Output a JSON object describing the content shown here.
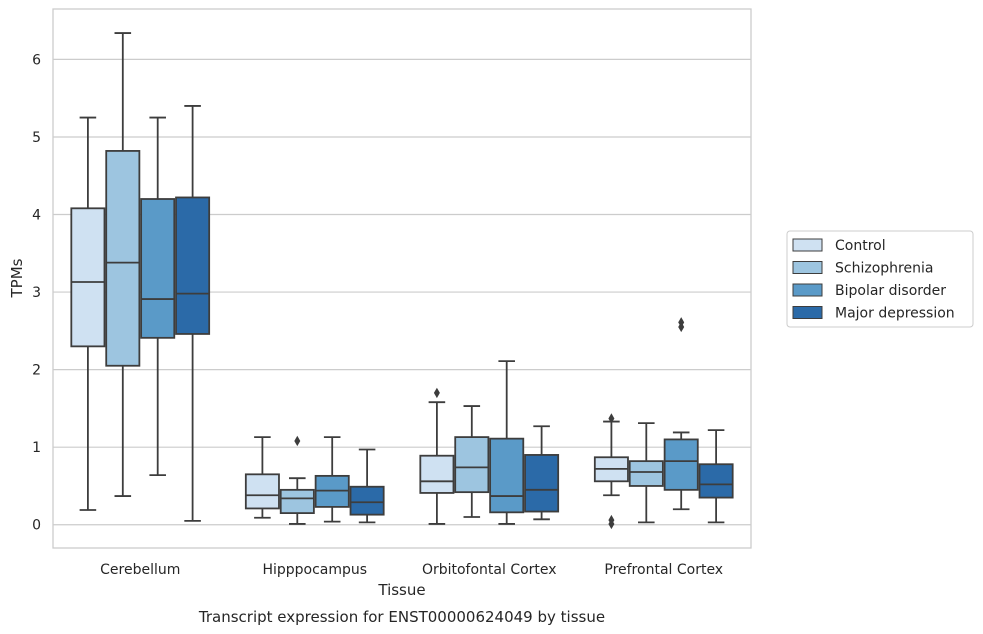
{
  "chart_data": {
    "type": "boxplot",
    "title": "",
    "caption": "Transcript expression for ENST00000624049 by tissue",
    "xlabel": "Tissue",
    "ylabel": "TPMs",
    "ylim": [
      -0.3,
      6.65
    ],
    "yticks": [
      0,
      1,
      2,
      3,
      4,
      5,
      6
    ],
    "grid": "horizontal",
    "legend_position": "right",
    "categories": [
      "Cerebellum",
      "Hipppocampus",
      "Orbitofontal Cortex",
      "Prefrontal Cortex"
    ],
    "series": [
      {
        "name": "Control",
        "color": "#cfe1f2",
        "boxes": [
          {
            "whislo": 0.19,
            "q1": 2.3,
            "med": 3.13,
            "q3": 4.08,
            "whishi": 5.25,
            "fliers": []
          },
          {
            "whislo": 0.09,
            "q1": 0.21,
            "med": 0.38,
            "q3": 0.65,
            "whishi": 1.13,
            "fliers": []
          },
          {
            "whislo": 0.01,
            "q1": 0.41,
            "med": 0.56,
            "q3": 0.89,
            "whishi": 1.58,
            "fliers": [
              1.7
            ]
          },
          {
            "whislo": 0.38,
            "q1": 0.56,
            "med": 0.72,
            "q3": 0.87,
            "whishi": 1.33,
            "fliers": [
              1.37,
              0.06,
              0.01
            ]
          }
        ]
      },
      {
        "name": "Schizophrenia",
        "color": "#9dc5e0",
        "boxes": [
          {
            "whislo": 0.37,
            "q1": 2.05,
            "med": 3.38,
            "q3": 4.82,
            "whishi": 6.34,
            "fliers": []
          },
          {
            "whislo": 0.01,
            "q1": 0.15,
            "med": 0.34,
            "q3": 0.45,
            "whishi": 0.6,
            "fliers": [
              1.08
            ]
          },
          {
            "whislo": 0.1,
            "q1": 0.42,
            "med": 0.74,
            "q3": 1.13,
            "whishi": 1.53,
            "fliers": []
          },
          {
            "whislo": 0.03,
            "q1": 0.5,
            "med": 0.68,
            "q3": 0.82,
            "whishi": 1.31,
            "fliers": []
          }
        ]
      },
      {
        "name": "Bipolar disorder",
        "color": "#5a9ac8",
        "boxes": [
          {
            "whislo": 0.64,
            "q1": 2.41,
            "med": 2.91,
            "q3": 4.2,
            "whishi": 5.25,
            "fliers": []
          },
          {
            "whislo": 0.04,
            "q1": 0.23,
            "med": 0.44,
            "q3": 0.63,
            "whishi": 1.13,
            "fliers": []
          },
          {
            "whislo": 0.01,
            "q1": 0.16,
            "med": 0.37,
            "q3": 1.11,
            "whishi": 2.11,
            "fliers": []
          },
          {
            "whislo": 0.2,
            "q1": 0.45,
            "med": 0.82,
            "q3": 1.1,
            "whishi": 1.19,
            "fliers": [
              2.61,
              2.55
            ]
          }
        ]
      },
      {
        "name": "Major depression",
        "color": "#2b6aa8",
        "boxes": [
          {
            "whislo": 0.05,
            "q1": 2.46,
            "med": 2.98,
            "q3": 4.22,
            "whishi": 5.4,
            "fliers": []
          },
          {
            "whislo": 0.03,
            "q1": 0.13,
            "med": 0.29,
            "q3": 0.49,
            "whishi": 0.97,
            "fliers": []
          },
          {
            "whislo": 0.07,
            "q1": 0.17,
            "med": 0.45,
            "q3": 0.9,
            "whishi": 1.27,
            "fliers": []
          },
          {
            "whislo": 0.03,
            "q1": 0.35,
            "med": 0.52,
            "q3": 0.78,
            "whishi": 1.22,
            "fliers": []
          }
        ]
      }
    ]
  }
}
